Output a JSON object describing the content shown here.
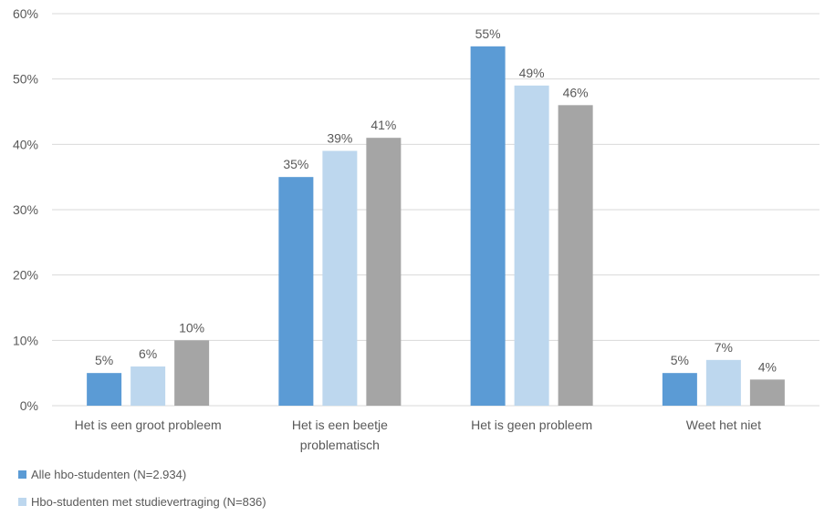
{
  "chart_data": {
    "type": "bar",
    "title": "",
    "xlabel": "",
    "ylabel": "",
    "categories": [
      [
        "Het is een groot probleem"
      ],
      [
        "Het is een beetje",
        "problematisch"
      ],
      [
        "Het is geen probleem"
      ],
      [
        "Weet het niet"
      ]
    ],
    "y_ticks": [
      "0%",
      "10%",
      "20%",
      "30%",
      "40%",
      "50%",
      "60%"
    ],
    "ylim": [
      0,
      60
    ],
    "grid": true,
    "legend_position": "bottom-left",
    "series": [
      {
        "name": "Alle hbo-studenten (N=2.934)",
        "color": "#5b9bd5",
        "values": [
          5,
          35,
          55,
          5
        ],
        "labels": [
          "5%",
          "35%",
          "55%",
          "5%"
        ]
      },
      {
        "name": "Hbo-studenten met studievertraging (N=836)",
        "color": "#bdd7ee",
        "values": [
          6,
          39,
          49,
          7
        ],
        "labels": [
          "6%",
          "39%",
          "49%",
          "7%"
        ]
      },
      {
        "name": "",
        "color": "#a5a5a5",
        "values": [
          10,
          41,
          46,
          4
        ],
        "labels": [
          "10%",
          "41%",
          "46%",
          "4%"
        ]
      }
    ]
  }
}
